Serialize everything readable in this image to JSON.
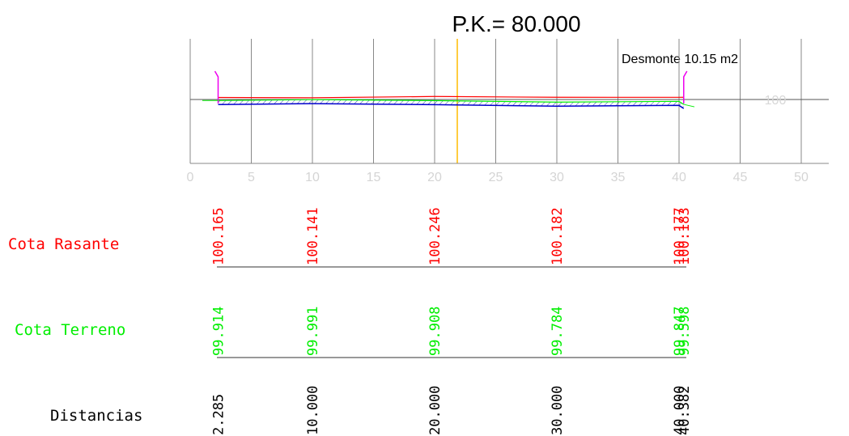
{
  "chart_data": {
    "type": "cross-section",
    "title": "P.K.=  80.000",
    "annotation": "Desmonte 10.15 m2",
    "xlim": [
      0,
      50
    ],
    "xticks": [
      0,
      5,
      10,
      15,
      20,
      25,
      30,
      35,
      40,
      45,
      50
    ],
    "yticks": [
      100
    ],
    "distances": {
      "name": "Distancias",
      "color": "#000000",
      "values": [
        2.285,
        10,
        20,
        30,
        40,
        40.382
      ],
      "value_labels": [
        "2.285",
        "10.000",
        "20.000",
        "30.000",
        "40.000",
        "40.382"
      ]
    },
    "series": [
      {
        "name": "Cota Rasante",
        "color": "#ff0000",
        "values": [
          100.165,
          100.141,
          100.246,
          100.182,
          100.177,
          100.183
        ]
      },
      {
        "name": "Cota Terreno",
        "color": "#00ee00",
        "values": [
          99.914,
          99.991,
          99.908,
          99.784,
          99.847,
          99.598
        ]
      }
    ]
  }
}
